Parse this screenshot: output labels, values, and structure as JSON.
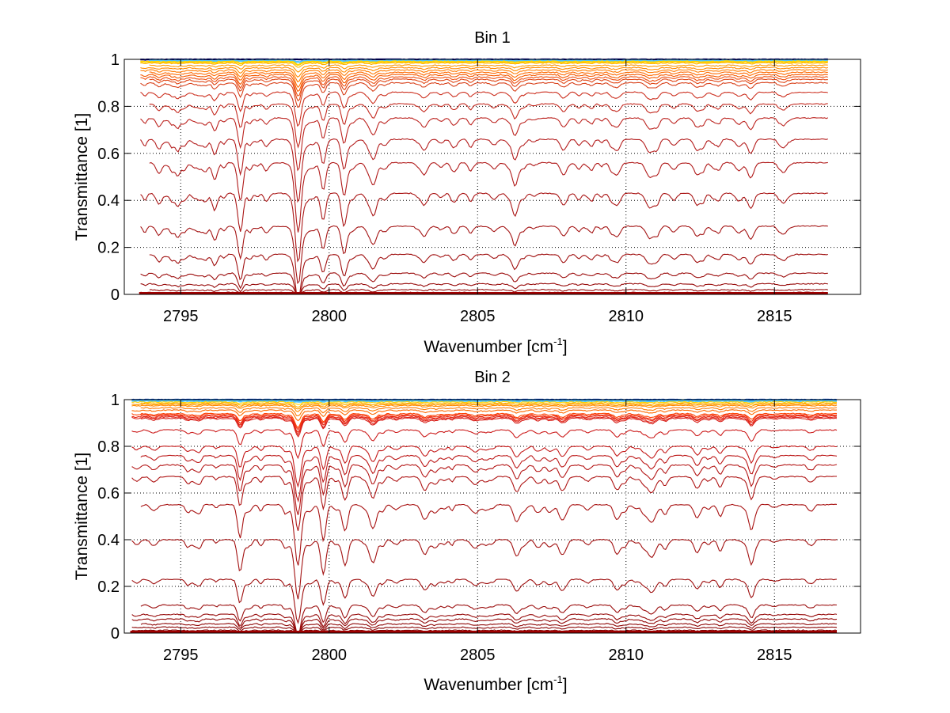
{
  "chart_data": [
    {
      "type": "line",
      "title": "Bin 1",
      "xlabel": "Wavenumber [cm^-1]",
      "xlabel_base": "Wavenumber [cm",
      "xlabel_sup": "-1",
      "xlabel_end": "]",
      "ylabel": "Transmittance [1]",
      "xlim": [
        2793.1,
        2817.9
      ],
      "ylim": [
        0,
        1
      ],
      "xticks": [
        2795,
        2800,
        2805,
        2810,
        2815
      ],
      "xtick_labels": [
        "2795",
        "2800",
        "2805",
        "2810",
        "2815"
      ],
      "yticks": [
        0,
        0.2,
        0.4,
        0.6,
        0.8,
        1
      ],
      "ytick_labels": [
        "0",
        "0.2",
        "0.4",
        "0.6",
        "0.8",
        "1"
      ],
      "grid": true,
      "x_range_data": [
        2793.6,
        2816.8
      ],
      "absorption_lines": [
        {
          "center": 2797.0,
          "strength": 0.55,
          "width": 0.12
        },
        {
          "center": 2798.95,
          "strength": 1.0,
          "width": 0.14
        },
        {
          "center": 2799.8,
          "strength": 0.45,
          "width": 0.12
        },
        {
          "center": 2800.5,
          "strength": 0.3,
          "width": 0.12
        },
        {
          "center": 2801.5,
          "strength": 0.35,
          "width": 0.15
        },
        {
          "center": 2803.2,
          "strength": 0.2,
          "width": 0.15
        },
        {
          "center": 2806.3,
          "strength": 0.18,
          "width": 0.15
        },
        {
          "center": 2807.9,
          "strength": 0.2,
          "width": 0.15
        },
        {
          "center": 2809.7,
          "strength": 0.2,
          "width": 0.15
        },
        {
          "center": 2810.8,
          "strength": 0.18,
          "width": 0.15
        },
        {
          "center": 2812.4,
          "strength": 0.2,
          "width": 0.15
        },
        {
          "center": 2814.2,
          "strength": 0.25,
          "width": 0.15
        }
      ],
      "series_baselines": [
        1.0,
        0.995,
        0.99,
        0.985,
        0.975,
        0.965,
        0.955,
        0.945,
        0.935,
        0.925,
        0.915,
        0.9,
        0.86,
        0.81,
        0.75,
        0.66,
        0.56,
        0.43,
        0.29,
        0.17,
        0.09,
        0.045,
        0.02,
        0.008,
        0.002
      ],
      "series_colors": [
        "#00008f",
        "#4fc3f7",
        "#ffd400",
        "#ffb300",
        "#ff9800",
        "#ff8a00",
        "#ff7a00",
        "#ff6a00",
        "#f45a00",
        "#ee4f10",
        "#e04514",
        "#d8401a",
        "#cc3020",
        "#c42a20",
        "#bc2420",
        "#b41e1e",
        "#b01a1a",
        "#aa1616",
        "#a41414",
        "#a01010",
        "#9c0e0e",
        "#980c0c",
        "#940a0a",
        "#900808",
        "#8c0606"
      ]
    },
    {
      "type": "line",
      "title": "Bin 2",
      "xlabel": "Wavenumber [cm^-1]",
      "xlabel_base": "Wavenumber [cm",
      "xlabel_sup": "-1",
      "xlabel_end": "]",
      "ylabel": "Transmittance [1]",
      "xlim": [
        2793.1,
        2817.9
      ],
      "ylim": [
        0,
        1
      ],
      "xticks": [
        2795,
        2800,
        2805,
        2810,
        2815
      ],
      "xtick_labels": [
        "2795",
        "2800",
        "2805",
        "2810",
        "2815"
      ],
      "yticks": [
        0,
        0.2,
        0.4,
        0.6,
        0.8,
        1
      ],
      "ytick_labels": [
        "0",
        "0.2",
        "0.4",
        "0.6",
        "0.8",
        "1"
      ],
      "grid": true,
      "x_range_data": [
        2793.3,
        2817.1
      ],
      "absorption_lines": [
        {
          "center": 2797.0,
          "strength": 0.55,
          "width": 0.12
        },
        {
          "center": 2798.95,
          "strength": 1.0,
          "width": 0.14
        },
        {
          "center": 2799.8,
          "strength": 0.5,
          "width": 0.12
        },
        {
          "center": 2800.5,
          "strength": 0.3,
          "width": 0.12
        },
        {
          "center": 2801.5,
          "strength": 0.35,
          "width": 0.15
        },
        {
          "center": 2803.2,
          "strength": 0.2,
          "width": 0.15
        },
        {
          "center": 2806.3,
          "strength": 0.2,
          "width": 0.15
        },
        {
          "center": 2807.9,
          "strength": 0.22,
          "width": 0.15
        },
        {
          "center": 2809.7,
          "strength": 0.25,
          "width": 0.15
        },
        {
          "center": 2810.8,
          "strength": 0.2,
          "width": 0.15
        },
        {
          "center": 2812.4,
          "strength": 0.22,
          "width": 0.15
        },
        {
          "center": 2814.2,
          "strength": 0.28,
          "width": 0.15
        }
      ],
      "series_baselines": [
        1.0,
        0.998,
        0.995,
        0.99,
        0.985,
        0.98,
        0.975,
        0.965,
        0.955,
        0.94,
        0.935,
        0.93,
        0.925,
        0.92,
        0.87,
        0.8,
        0.76,
        0.72,
        0.67,
        0.55,
        0.4,
        0.23,
        0.12,
        0.08,
        0.06,
        0.04,
        0.025,
        0.012,
        0.004
      ],
      "series_colors": [
        "#0033cc",
        "#1e88e5",
        "#4fc3f7",
        "#ffd400",
        "#ffb300",
        "#ff9800",
        "#ff8a00",
        "#ff7a00",
        "#ff6a00",
        "#ff4000",
        "#f03010",
        "#e82814",
        "#e02418",
        "#d8201a",
        "#cc1c1c",
        "#c41a1a",
        "#bc1818",
        "#b41616",
        "#ae1414",
        "#a81212",
        "#a21010",
        "#9e0e0e",
        "#9a0c0c",
        "#960a0a",
        "#920808",
        "#8e0606",
        "#8a0404",
        "#860202",
        "#820000"
      ]
    }
  ]
}
